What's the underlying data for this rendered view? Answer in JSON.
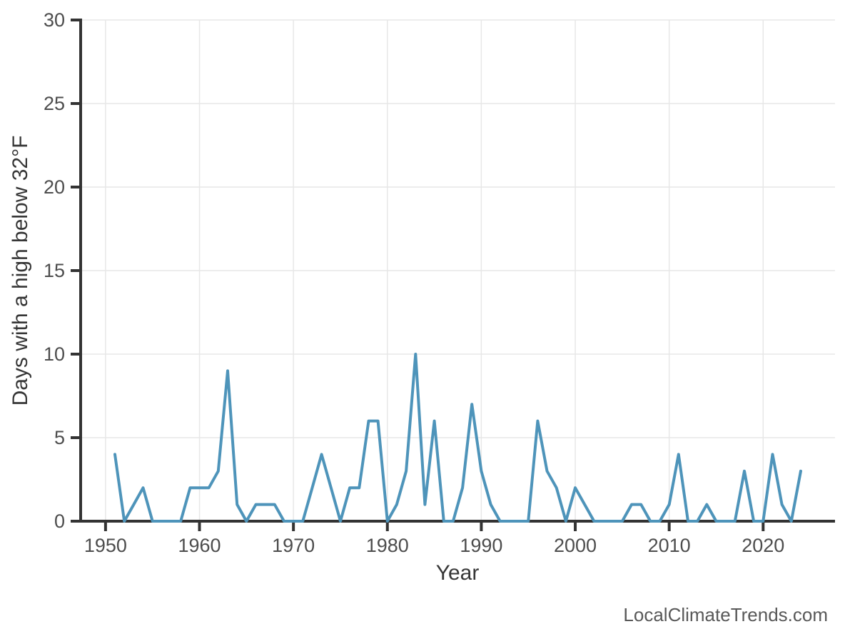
{
  "watermark": {
    "text": "LocalClimateTrends.com"
  },
  "chart_data": {
    "type": "line",
    "title": "",
    "xlabel": "Year",
    "ylabel": "Days with a high below 32°F",
    "x": [
      1951,
      1952,
      1953,
      1954,
      1955,
      1956,
      1957,
      1958,
      1959,
      1960,
      1961,
      1962,
      1963,
      1964,
      1965,
      1966,
      1967,
      1968,
      1969,
      1970,
      1971,
      1972,
      1973,
      1974,
      1975,
      1976,
      1977,
      1978,
      1979,
      1980,
      1981,
      1982,
      1983,
      1984,
      1985,
      1986,
      1987,
      1988,
      1989,
      1990,
      1991,
      1992,
      1993,
      1994,
      1995,
      1996,
      1997,
      1998,
      1999,
      2000,
      2001,
      2002,
      2003,
      2004,
      2005,
      2006,
      2007,
      2008,
      2009,
      2010,
      2011,
      2012,
      2013,
      2014,
      2015,
      2016,
      2017,
      2018,
      2019,
      2020,
      2021,
      2022,
      2023,
      2024
    ],
    "values": [
      4,
      0,
      1,
      2,
      0,
      0,
      0,
      0,
      2,
      2,
      2,
      3,
      9,
      1,
      0,
      1,
      1,
      1,
      0,
      0,
      0,
      2,
      4,
      2,
      0,
      2,
      2,
      6,
      6,
      0,
      1,
      3,
      10,
      1,
      6,
      0,
      0,
      2,
      7,
      3,
      1,
      0,
      0,
      0,
      0,
      6,
      3,
      2,
      0,
      2,
      1,
      0,
      0,
      0,
      0,
      1,
      1,
      0,
      0,
      1,
      4,
      0,
      0,
      1,
      0,
      0,
      0,
      3,
      0,
      0,
      4,
      1,
      0,
      3
    ],
    "xlim": [
      1947.35,
      2027.65
    ],
    "ylim": [
      0,
      30
    ],
    "xticks": [
      1950,
      1960,
      1970,
      1980,
      1990,
      2000,
      2010,
      2020
    ],
    "yticks": [
      0,
      5,
      10,
      15,
      20,
      25,
      30
    ],
    "grid": true,
    "legend": "none",
    "series_color": "#4e94ba",
    "axis_color": "#333333",
    "grid_color": "#e7e7e7",
    "tick_label_color": "#4d4d4d",
    "title_color": "#363636"
  }
}
